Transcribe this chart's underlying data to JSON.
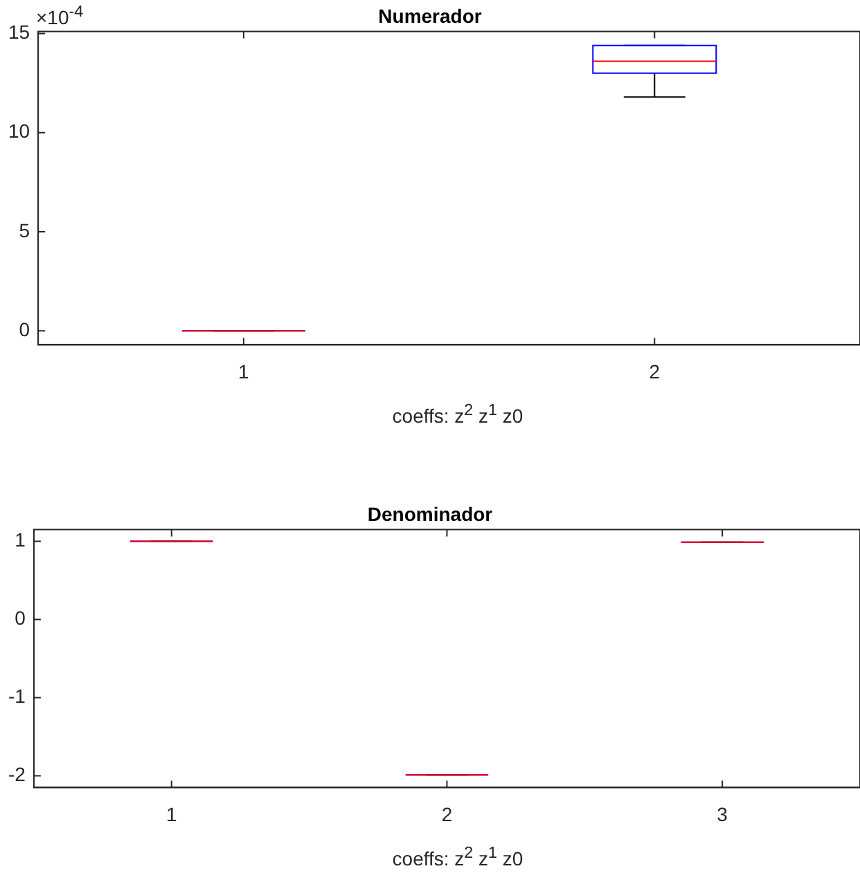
{
  "chart_data": [
    {
      "type": "box",
      "title": "Numerador",
      "categories": [
        "1",
        "2"
      ],
      "xlabel": "coeffs: z$^{2}$ z$^{1}$ z0",
      "annotations": [
        "×10$^{-4}$"
      ],
      "ylim": [
        -0.7,
        15.1
      ],
      "yticks": [
        0,
        5,
        10,
        15
      ],
      "grid": false,
      "boxes": [
        {
          "low": 0,
          "q1": 0,
          "median": 0,
          "q3": 0,
          "high": 0
        },
        {
          "low": 11.8,
          "q1": 13,
          "median": 13.6,
          "q3": 14.4,
          "high": 14.4
        }
      ]
    },
    {
      "type": "box",
      "title": "Denominador",
      "categories": [
        "1",
        "2",
        "3"
      ],
      "xlabel": "coeffs: z$^{2}$ z$^{1}$ z0",
      "ylim": [
        -2.15,
        1.15
      ],
      "yticks": [
        -2,
        -1,
        0,
        1
      ],
      "grid": false,
      "boxes": [
        {
          "low": 1,
          "q1": 1,
          "median": 1,
          "q3": 1,
          "high": 1
        },
        {
          "low": -1.99,
          "q1": -1.99,
          "median": -1.99,
          "q3": -1.99,
          "high": -1.99
        },
        {
          "low": 0.99,
          "q1": 0.99,
          "median": 0.99,
          "q3": 0.99,
          "high": 0.99
        }
      ]
    }
  ]
}
